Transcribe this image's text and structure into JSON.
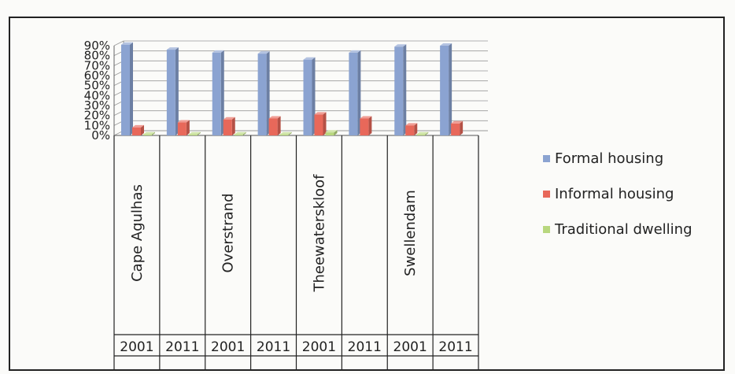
{
  "colors": {
    "formal": "#8ba3d1",
    "informal": "#e8685a",
    "traditional": "#b8d77e",
    "frame": "#222222",
    "grid": "#9a9a9a"
  },
  "chart_data": {
    "type": "bar",
    "yaxis": {
      "min": 0,
      "max": 90,
      "step": 10,
      "tick_labels": [
        "0%",
        "10%",
        "20%",
        "30%",
        "40%",
        "50%",
        "60%",
        "70%",
        "80%",
        "90%"
      ]
    },
    "years": [
      "2001",
      "2011",
      "2001",
      "2011",
      "2001",
      "2011",
      "2001",
      "2011"
    ],
    "municipalities": [
      "Cape Agulhas",
      "",
      "Overstrand",
      "",
      "Theewaterskloof",
      "",
      "Swellendam",
      ""
    ],
    "series": [
      {
        "name": "Formal housing",
        "values": [
          91,
          86,
          83,
          82,
          76,
          83,
          89,
          90
        ]
      },
      {
        "name": "Informal housing",
        "values": [
          8,
          13,
          16,
          17,
          21,
          17,
          10,
          12
        ]
      },
      {
        "name": "Traditional dwelling",
        "values": [
          1,
          1,
          1,
          1,
          3,
          0,
          1,
          0
        ]
      }
    ],
    "legend_position": "right",
    "grid": true
  }
}
